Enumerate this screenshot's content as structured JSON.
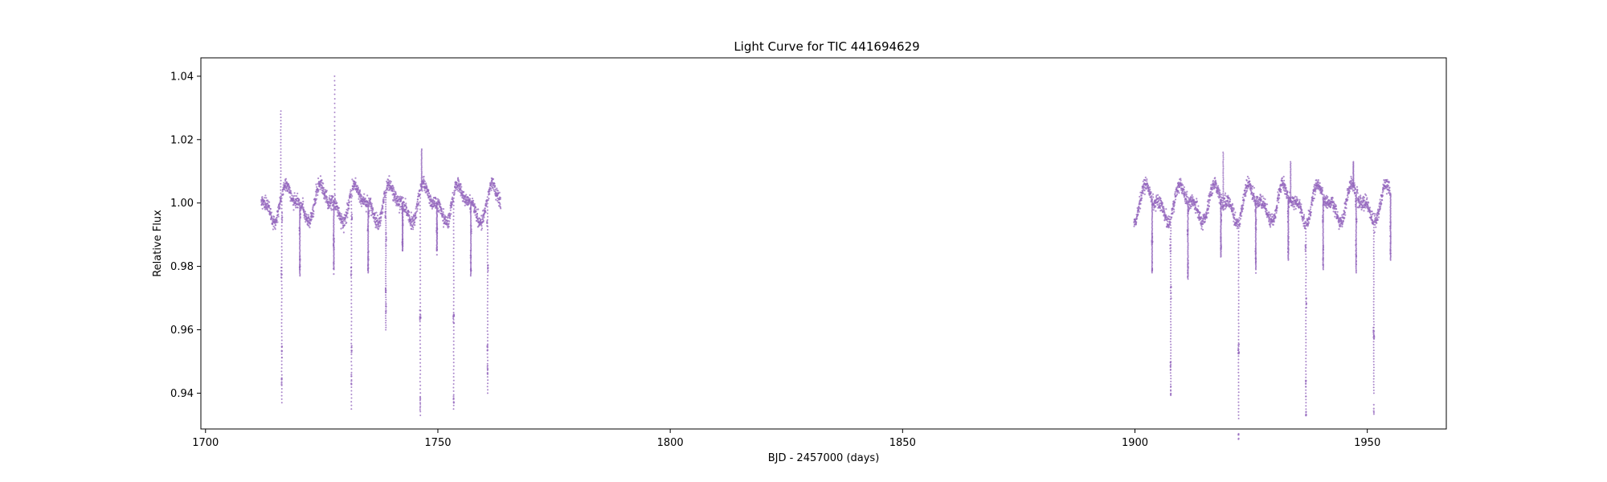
{
  "chart_data": {
    "type": "scatter",
    "title": "Light Curve for TIC 441694629",
    "xlabel": "BJD - 2457000 (days)",
    "ylabel": "Relative Flux",
    "xlim": [
      1699,
      1967
    ],
    "ylim": [
      0.9287,
      1.0458
    ],
    "xticks": [
      1700,
      1750,
      1800,
      1850,
      1900,
      1950
    ],
    "xtick_labels": [
      "1700",
      "1750",
      "1800",
      "1850",
      "1900",
      "1950"
    ],
    "yticks": [
      0.94,
      0.96,
      0.98,
      1.0,
      1.02,
      1.04
    ],
    "ytick_labels": [
      "0.94",
      "0.96",
      "0.98",
      "1.00",
      "1.02",
      "1.04"
    ],
    "grid": false,
    "marker_color": "#9467bd",
    "segments": [
      {
        "x_start": 1712.0,
        "x_end": 1763.5
      },
      {
        "x_start": 1899.8,
        "x_end": 1955.0
      }
    ],
    "eclipses": [
      {
        "x": 1716.4,
        "min": 0.937
      },
      {
        "x": 1720.3,
        "min": 0.977
      },
      {
        "x": 1727.6,
        "min": 0.979
      },
      {
        "x": 1731.4,
        "min": 0.935
      },
      {
        "x": 1735.0,
        "min": 0.978
      },
      {
        "x": 1738.8,
        "min": 0.96
      },
      {
        "x": 1742.4,
        "min": 0.985
      },
      {
        "x": 1746.2,
        "min": 0.933
      },
      {
        "x": 1749.8,
        "min": 0.985
      },
      {
        "x": 1753.4,
        "min": 0.935
      },
      {
        "x": 1757.1,
        "min": 0.977
      },
      {
        "x": 1760.7,
        "min": 0.94
      },
      {
        "x": 1903.7,
        "min": 0.978
      },
      {
        "x": 1907.7,
        "min": 0.941
      },
      {
        "x": 1911.4,
        "min": 0.976
      },
      {
        "x": 1918.5,
        "min": 0.983
      },
      {
        "x": 1922.3,
        "min": 0.932
      },
      {
        "x": 1926.0,
        "min": 0.979
      },
      {
        "x": 1933.0,
        "min": 0.982
      },
      {
        "x": 1936.8,
        "min": 0.934
      },
      {
        "x": 1940.5,
        "min": 0.979
      },
      {
        "x": 1947.6,
        "min": 0.978
      },
      {
        "x": 1951.4,
        "min": 0.94
      },
      {
        "x": 1955.0,
        "min": 0.982
      }
    ],
    "flares": [
      {
        "x": 1716.2,
        "peak": 1.029
      },
      {
        "x": 1727.8,
        "peak": 1.04
      },
      {
        "x": 1746.5,
        "peak": 1.017
      },
      {
        "x": 1919.0,
        "peak": 1.016
      },
      {
        "x": 1933.5,
        "peak": 1.013
      },
      {
        "x": 1947.0,
        "peak": 1.013
      }
    ]
  }
}
